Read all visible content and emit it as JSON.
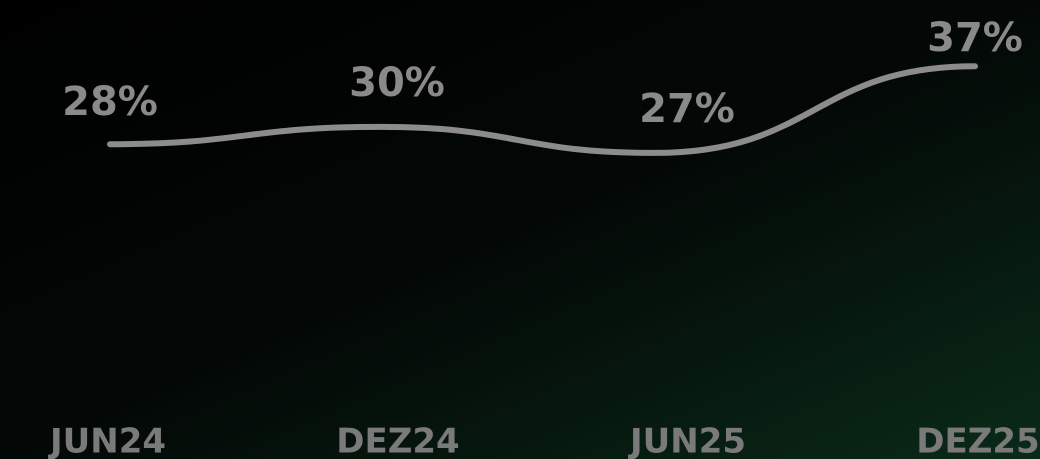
{
  "chart_data": {
    "type": "line",
    "categories": [
      "JUN24",
      "DEZ24",
      "JUN25",
      "DEZ25"
    ],
    "series": [
      {
        "values": [
          28,
          30,
          27,
          37
        ],
        "value_labels": [
          "28%",
          "30%",
          "27%",
          "37%"
        ],
        "color": "#8c8c8c"
      }
    ]
  }
}
